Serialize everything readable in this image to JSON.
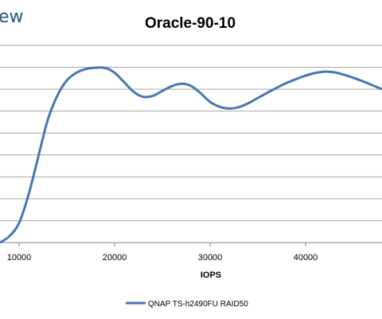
{
  "brand": {
    "logo_text": "ew"
  },
  "chart_data": {
    "type": "line",
    "title": "Oracle-90-10",
    "xlabel": "IOPS",
    "ylabel": "",
    "x_ticks": [
      10000,
      20000,
      30000,
      40000
    ],
    "x_tick_labels": [
      "10000",
      "20000",
      "30000",
      "40000"
    ],
    "xlim": [
      8000,
      48000
    ],
    "ylim": [
      0,
      9
    ],
    "grid": true,
    "legend_position": "bottom",
    "series": [
      {
        "name": "QNAP TS-h2490FU RAID50",
        "color": "#4a76b0",
        "x": [
          8000,
          9000,
          10000,
          11000,
          12000,
          13000,
          14000,
          15000,
          16000,
          17000,
          18000,
          19000,
          20000,
          21000,
          22000,
          23000,
          24000,
          25000,
          26000,
          27000,
          28000,
          29000,
          30000,
          31000,
          32000,
          33000,
          34000,
          35000,
          36000,
          37000,
          38000,
          39000,
          40000,
          41000,
          42000,
          43000,
          44000,
          45000,
          46000,
          47000,
          48000
        ],
        "y": [
          0,
          0.3,
          0.9,
          2.2,
          3.9,
          5.6,
          6.7,
          7.4,
          7.75,
          7.92,
          7.98,
          7.97,
          7.75,
          7.32,
          6.88,
          6.65,
          6.7,
          6.92,
          7.14,
          7.25,
          7.15,
          6.82,
          6.42,
          6.2,
          6.12,
          6.18,
          6.36,
          6.6,
          6.84,
          7.07,
          7.28,
          7.46,
          7.62,
          7.74,
          7.8,
          7.77,
          7.66,
          7.52,
          7.36,
          7.18,
          7.0
        ]
      }
    ]
  }
}
